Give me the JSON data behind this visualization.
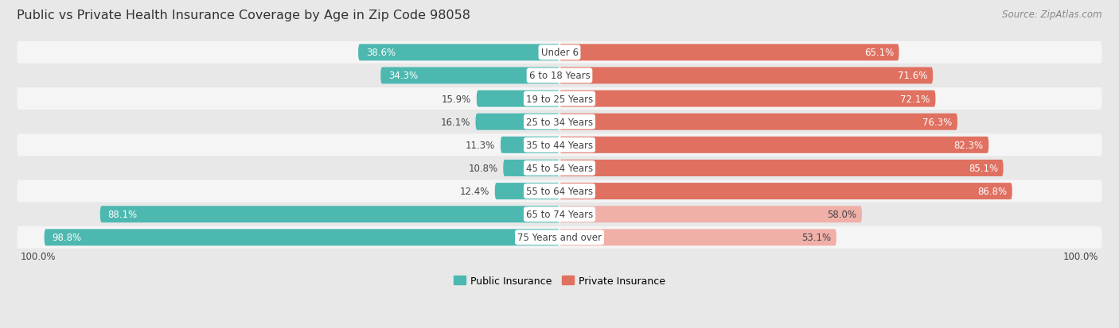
{
  "title": "Public vs Private Health Insurance Coverage by Age in Zip Code 98058",
  "source": "Source: ZipAtlas.com",
  "categories": [
    "Under 6",
    "6 to 18 Years",
    "19 to 25 Years",
    "25 to 34 Years",
    "35 to 44 Years",
    "45 to 54 Years",
    "55 to 64 Years",
    "65 to 74 Years",
    "75 Years and over"
  ],
  "public_values": [
    38.6,
    34.3,
    15.9,
    16.1,
    11.3,
    10.8,
    12.4,
    88.1,
    98.8
  ],
  "private_values": [
    65.1,
    71.6,
    72.1,
    76.3,
    82.3,
    85.1,
    86.8,
    58.0,
    53.1
  ],
  "public_color_strong": "#4db8b0",
  "public_color_light": "#a8dbd8",
  "private_color_strong": "#e07060",
  "private_color_light": "#f0b0a8",
  "bg_color": "#e8e8e8",
  "row_bg_light": "#f5f5f5",
  "row_bg_dark": "#e8e8e8",
  "label_color_dark": "#444444",
  "label_color_white": "#ffffff",
  "title_fontsize": 11.5,
  "source_fontsize": 8.5,
  "bar_label_fontsize": 8.5,
  "category_fontsize": 8.5,
  "legend_fontsize": 9,
  "axis_label_fontsize": 8.5,
  "strong_threshold": 7,
  "max_value": 100.0
}
